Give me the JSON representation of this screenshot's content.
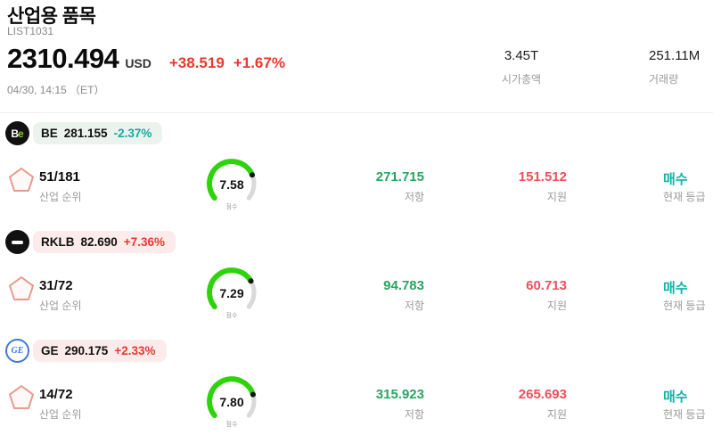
{
  "header": {
    "title": "산업용 품목",
    "subtitle": "LIST1031",
    "price": "2310.494",
    "currency": "USD",
    "change_abs": "+38.519",
    "change_pct": "+1.67%",
    "datetime": "04/30, 14:15 （ET）",
    "market_cap": {
      "value": "3.45T",
      "label": "시가총액"
    },
    "volume": {
      "value": "251.11M",
      "label": "거래량"
    }
  },
  "labels": {
    "rank": "산업 순위",
    "score": "점수",
    "resistance": "저항",
    "support": "지원",
    "rating": "현재 등급"
  },
  "colors": {
    "up": "#e8392e",
    "resistance": "#27a561",
    "support": "#ee4f5a",
    "rating": "#10b2a6",
    "gauge_green": "#2ed30b",
    "gauge_track": "#d9d9d9"
  },
  "stocks": [
    {
      "ticker": "BE",
      "price": "281.155",
      "change": "-2.37%",
      "change_color": "#14ab9f",
      "pill_bg": "#ecf2ee",
      "rank": "51/181",
      "score": 7.58,
      "resistance": "271.715",
      "support": "151.512",
      "rating": "매수"
    },
    {
      "ticker": "RKLB",
      "price": "82.690",
      "change": "+7.36%",
      "change_color": "#e8392e",
      "pill_bg": "#fcebeb",
      "rank": "31/72",
      "score": 7.29,
      "resistance": "94.783",
      "support": "60.713",
      "rating": "매수"
    },
    {
      "ticker": "GE",
      "price": "290.175",
      "change": "+2.33%",
      "change_color": "#e8392e",
      "pill_bg": "#fcebeb",
      "rank": "14/72",
      "score": 7.8,
      "resistance": "315.923",
      "support": "265.693",
      "rating": "매수"
    }
  ]
}
